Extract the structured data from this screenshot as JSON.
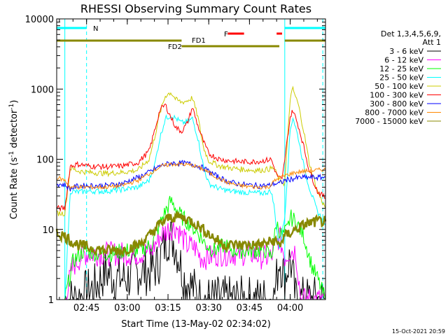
{
  "chart_data": {
    "type": "line",
    "title": "RHESSI Observing Summary Count Rates",
    "xlabel": "Start Time (13-May-02 02:34:02)",
    "ylabel_pre": "Count Rate (s",
    "ylabel_sup": "-1",
    "ylabel_post": " detector",
    "ylabel_end": ")",
    "x_unit": "minutes since 02:34:02",
    "xlim": [
      0,
      99
    ],
    "ylim": [
      1,
      10000
    ],
    "yscale": "log",
    "grid": false,
    "x_ticks": [
      {
        "label": "02:45",
        "value": 11
      },
      {
        "label": "03:00",
        "value": 26
      },
      {
        "label": "03:15",
        "value": 41
      },
      {
        "label": "03:30",
        "value": 56
      },
      {
        "label": "03:45",
        "value": 71
      },
      {
        "label": "04:00",
        "value": 86
      }
    ],
    "y_ticks": [
      {
        "label": "1",
        "value": 1
      },
      {
        "label": "10",
        "value": 10
      },
      {
        "label": "100",
        "value": 100
      },
      {
        "label": "1000",
        "value": 1000
      },
      {
        "label": "10000",
        "value": 10000
      }
    ],
    "legend_header": [
      "Det 1,3,4,5,6,9,",
      "Att 1"
    ],
    "legend_position": "right",
    "series": [
      {
        "name": "3 - 6 keV",
        "color": "#000000",
        "points": [
          [
            3,
            1
          ],
          [
            7,
            1
          ],
          [
            14,
            1.5
          ],
          [
            18,
            2.5
          ],
          [
            22,
            2
          ],
          [
            26,
            2
          ],
          [
            30,
            2.5
          ],
          [
            34,
            2.5
          ],
          [
            37,
            3
          ],
          [
            39,
            5
          ],
          [
            41,
            8
          ],
          [
            43,
            7
          ],
          [
            45,
            4
          ],
          [
            47,
            2
          ],
          [
            50,
            1.5
          ],
          [
            53,
            1
          ],
          [
            60,
            1
          ],
          [
            68,
            1
          ],
          [
            75,
            1
          ],
          [
            80,
            1
          ],
          [
            82,
            4
          ],
          [
            84,
            2
          ],
          [
            86,
            4
          ],
          [
            88,
            1
          ],
          [
            92,
            1
          ],
          [
            99,
            1
          ]
        ]
      },
      {
        "name": "6 - 12 keV",
        "color": "#ff00ff",
        "points": [
          [
            3,
            1
          ],
          [
            6,
            3
          ],
          [
            10,
            4.5
          ],
          [
            15,
            4.5
          ],
          [
            20,
            4.5
          ],
          [
            25,
            4.5
          ],
          [
            30,
            4.5
          ],
          [
            35,
            5
          ],
          [
            38,
            8
          ],
          [
            41,
            10
          ],
          [
            44,
            11
          ],
          [
            46,
            8
          ],
          [
            48,
            6
          ],
          [
            51,
            5.5
          ],
          [
            53,
            4
          ],
          [
            56,
            4
          ],
          [
            60,
            4.5
          ],
          [
            64,
            4.5
          ],
          [
            68,
            4.5
          ],
          [
            72,
            4.5
          ],
          [
            76,
            4
          ],
          [
            79,
            4
          ],
          [
            82,
            8
          ],
          [
            84,
            4
          ],
          [
            86,
            5
          ],
          [
            88,
            5
          ],
          [
            90,
            1
          ],
          [
            99,
            1
          ]
        ]
      },
      {
        "name": "12 - 25 keV",
        "color": "#00ff00",
        "points": [
          [
            3,
            1
          ],
          [
            6,
            3.5
          ],
          [
            10,
            5
          ],
          [
            15,
            4.5
          ],
          [
            20,
            4.5
          ],
          [
            25,
            5
          ],
          [
            30,
            5
          ],
          [
            35,
            6
          ],
          [
            38,
            12
          ],
          [
            40,
            18
          ],
          [
            42,
            25
          ],
          [
            44,
            20
          ],
          [
            46,
            15
          ],
          [
            49,
            12
          ],
          [
            52,
            9
          ],
          [
            55,
            6
          ],
          [
            58,
            5
          ],
          [
            62,
            6
          ],
          [
            65,
            5
          ],
          [
            70,
            5
          ],
          [
            74,
            5
          ],
          [
            77,
            5
          ],
          [
            79,
            4
          ],
          [
            81,
            12
          ],
          [
            83,
            8
          ],
          [
            85,
            10
          ],
          [
            86,
            15
          ],
          [
            88,
            13
          ],
          [
            91,
            8
          ],
          [
            94,
            3
          ],
          [
            96,
            2
          ],
          [
            99,
            1
          ]
        ]
      },
      {
        "name": "25 - 50 keV",
        "color": "#00ffff",
        "points": [
          [
            3,
            1
          ],
          [
            5,
            35
          ],
          [
            8,
            34
          ],
          [
            12,
            35
          ],
          [
            18,
            35
          ],
          [
            24,
            37
          ],
          [
            30,
            40
          ],
          [
            34,
            50
          ],
          [
            36,
            80
          ],
          [
            38,
            200
          ],
          [
            40,
            380
          ],
          [
            42,
            420
          ],
          [
            44,
            380
          ],
          [
            46,
            330
          ],
          [
            48,
            340
          ],
          [
            50,
            380
          ],
          [
            52,
            200
          ],
          [
            54,
            80
          ],
          [
            56,
            45
          ],
          [
            60,
            38
          ],
          [
            64,
            35
          ],
          [
            68,
            34
          ],
          [
            72,
            33
          ],
          [
            76,
            33
          ],
          [
            79,
            35
          ],
          [
            80,
            22
          ],
          [
            82,
            5
          ],
          [
            84,
            15
          ],
          [
            86,
            260
          ],
          [
            87,
            400
          ],
          [
            89,
            200
          ],
          [
            91,
            80
          ],
          [
            93,
            40
          ],
          [
            96,
            18
          ],
          [
            99,
            12
          ]
        ]
      },
      {
        "name": "50 - 100 keV",
        "color": "#cccc00",
        "points": [
          [
            0,
            17
          ],
          [
            3,
            17
          ],
          [
            5,
            75
          ],
          [
            8,
            68
          ],
          [
            12,
            65
          ],
          [
            18,
            63
          ],
          [
            24,
            65
          ],
          [
            30,
            70
          ],
          [
            34,
            100
          ],
          [
            36,
            200
          ],
          [
            38,
            450
          ],
          [
            40,
            800
          ],
          [
            42,
            900
          ],
          [
            44,
            700
          ],
          [
            46,
            650
          ],
          [
            48,
            680
          ],
          [
            50,
            750
          ],
          [
            52,
            400
          ],
          [
            54,
            150
          ],
          [
            56,
            95
          ],
          [
            60,
            80
          ],
          [
            64,
            75
          ],
          [
            68,
            72
          ],
          [
            72,
            70
          ],
          [
            76,
            70
          ],
          [
            80,
            75
          ],
          [
            82,
            50
          ],
          [
            84,
            45
          ],
          [
            86,
            750
          ],
          [
            87,
            1000
          ],
          [
            89,
            600
          ],
          [
            91,
            250
          ],
          [
            93,
            90
          ],
          [
            96,
            35
          ],
          [
            99,
            20
          ]
        ]
      },
      {
        "name": "100 - 300 keV",
        "color": "#ff0000",
        "points": [
          [
            0,
            20
          ],
          [
            3,
            20
          ],
          [
            5,
            80
          ],
          [
            8,
            85
          ],
          [
            12,
            80
          ],
          [
            18,
            78
          ],
          [
            24,
            80
          ],
          [
            30,
            90
          ],
          [
            34,
            130
          ],
          [
            36,
            250
          ],
          [
            38,
            500
          ],
          [
            40,
            600
          ],
          [
            42,
            400
          ],
          [
            44,
            280
          ],
          [
            46,
            250
          ],
          [
            48,
            320
          ],
          [
            50,
            550
          ],
          [
            52,
            300
          ],
          [
            54,
            180
          ],
          [
            56,
            120
          ],
          [
            60,
            100
          ],
          [
            64,
            95
          ],
          [
            68,
            92
          ],
          [
            72,
            92
          ],
          [
            76,
            95
          ],
          [
            79,
            100
          ],
          [
            81,
            60
          ],
          [
            83,
            50
          ],
          [
            86,
            400
          ],
          [
            87,
            500
          ],
          [
            89,
            300
          ],
          [
            91,
            150
          ],
          [
            93,
            70
          ],
          [
            96,
            35
          ],
          [
            99,
            28
          ]
        ]
      },
      {
        "name": "300 - 800 keV",
        "color": "#0000ff",
        "points": [
          [
            0,
            45
          ],
          [
            3,
            43
          ],
          [
            5,
            38
          ],
          [
            8,
            42
          ],
          [
            12,
            42
          ],
          [
            18,
            42
          ],
          [
            24,
            45
          ],
          [
            30,
            55
          ],
          [
            34,
            65
          ],
          [
            38,
            80
          ],
          [
            42,
            88
          ],
          [
            46,
            88
          ],
          [
            50,
            85
          ],
          [
            54,
            75
          ],
          [
            58,
            60
          ],
          [
            62,
            50
          ],
          [
            66,
            45
          ],
          [
            70,
            43
          ],
          [
            74,
            42
          ],
          [
            78,
            42
          ],
          [
            80,
            45
          ],
          [
            82,
            45
          ],
          [
            84,
            50
          ],
          [
            86,
            52
          ],
          [
            90,
            55
          ],
          [
            95,
            55
          ],
          [
            99,
            55
          ]
        ]
      },
      {
        "name": "800 - 7000 keV",
        "color": "#ff8800",
        "points": [
          [
            0,
            55
          ],
          [
            3,
            50
          ],
          [
            5,
            40
          ],
          [
            8,
            40
          ],
          [
            12,
            40
          ],
          [
            18,
            40
          ],
          [
            24,
            42
          ],
          [
            30,
            50
          ],
          [
            34,
            62
          ],
          [
            38,
            78
          ],
          [
            42,
            85
          ],
          [
            46,
            85
          ],
          [
            50,
            82
          ],
          [
            54,
            72
          ],
          [
            58,
            58
          ],
          [
            62,
            48
          ],
          [
            66,
            43
          ],
          [
            70,
            41
          ],
          [
            74,
            40
          ],
          [
            78,
            40
          ],
          [
            80,
            48
          ],
          [
            82,
            55
          ],
          [
            85,
            60
          ],
          [
            88,
            65
          ],
          [
            92,
            68
          ],
          [
            96,
            70
          ],
          [
            99,
            72
          ]
        ]
      },
      {
        "name": "7000 - 15000 keV",
        "color": "#888800",
        "points": [
          [
            0,
            9
          ],
          [
            3,
            8
          ],
          [
            5,
            7
          ],
          [
            8,
            6
          ],
          [
            12,
            5.5
          ],
          [
            18,
            5
          ],
          [
            24,
            5
          ],
          [
            30,
            6
          ],
          [
            34,
            8
          ],
          [
            38,
            12
          ],
          [
            42,
            15
          ],
          [
            46,
            15
          ],
          [
            50,
            13
          ],
          [
            54,
            10
          ],
          [
            58,
            7.5
          ],
          [
            62,
            6
          ],
          [
            66,
            6
          ],
          [
            70,
            6
          ],
          [
            74,
            6
          ],
          [
            78,
            6.5
          ],
          [
            80,
            7
          ],
          [
            82,
            6
          ],
          [
            84,
            8
          ],
          [
            88,
            10
          ],
          [
            92,
            12
          ],
          [
            96,
            13
          ],
          [
            99,
            13
          ]
        ]
      }
    ],
    "annotations": {
      "N": {
        "label": "N",
        "color": "#00ffff",
        "value": 99
      },
      "FD1": {
        "label": "FD1",
        "color": "#888800"
      },
      "FD2": {
        "label": "FD2",
        "color": "#888800"
      },
      "F": {
        "label": "F",
        "color": "#ff0000"
      }
    },
    "vertical_markers": [
      {
        "value": 3,
        "color": "#00ffff",
        "style": "solid"
      },
      {
        "value": 11,
        "color": "#00ffff",
        "style": "dashed"
      },
      {
        "value": 84,
        "color": "#00ffff",
        "style": "solid"
      },
      {
        "value": 98,
        "color": "#00ffff",
        "style": "dashed"
      }
    ]
  },
  "footer": {
    "datestamp": "15-Oct-2021 20:59"
  }
}
